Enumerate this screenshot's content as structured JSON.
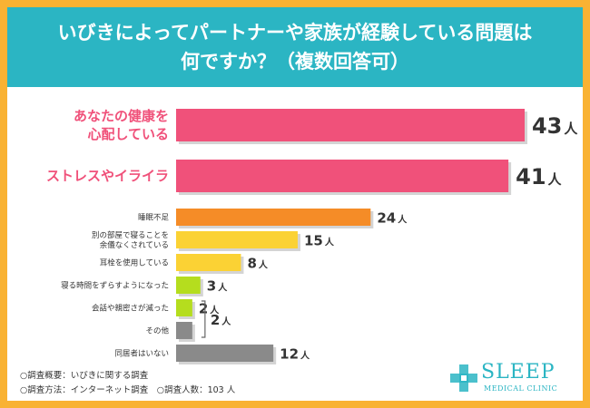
{
  "title": {
    "line1": "いびきによってパートナーや家族が経験している問題は",
    "line2": "何ですか？（複数回答可）"
  },
  "chart_data": {
    "type": "bar",
    "orientation": "horizontal",
    "unit": "人",
    "categories": [
      [
        "あなたの健康を",
        "心配している"
      ],
      [
        "ストレスやイライラ"
      ],
      [
        "睡眠不足"
      ],
      [
        "別の部屋で寝ることを",
        "余儀なくされている"
      ],
      [
        "耳栓を使用している"
      ],
      [
        "寝る時間をずらすようになった"
      ],
      [
        "会話や親密さが減った"
      ],
      [
        "その他"
      ],
      [
        "同居者はいない"
      ]
    ],
    "values": [
      43,
      41,
      24,
      15,
      8,
      3,
      2,
      2,
      12
    ],
    "value_labels": [
      "43",
      "41",
      "24",
      "15",
      "8",
      "3",
      "2",
      "",
      "12"
    ],
    "grouped_label": {
      "text": "2",
      "applies_to": [
        "会話や親密さが減った",
        "その他"
      ]
    },
    "colors": [
      "#f0517a",
      "#f0517a",
      "#f58c27",
      "#fbd234",
      "#fbd234",
      "#b5dd1e",
      "#b5dd1e",
      "#8a8a8a",
      "#8a8a8a"
    ]
  },
  "footer": {
    "line1": "○調査概要：いびきに関する調査",
    "line2": "○調査方法：インターネット調査　○調査人数：103 人"
  },
  "logo": {
    "name": "SLEEP",
    "sub": "MEDICAL CLINIC"
  }
}
